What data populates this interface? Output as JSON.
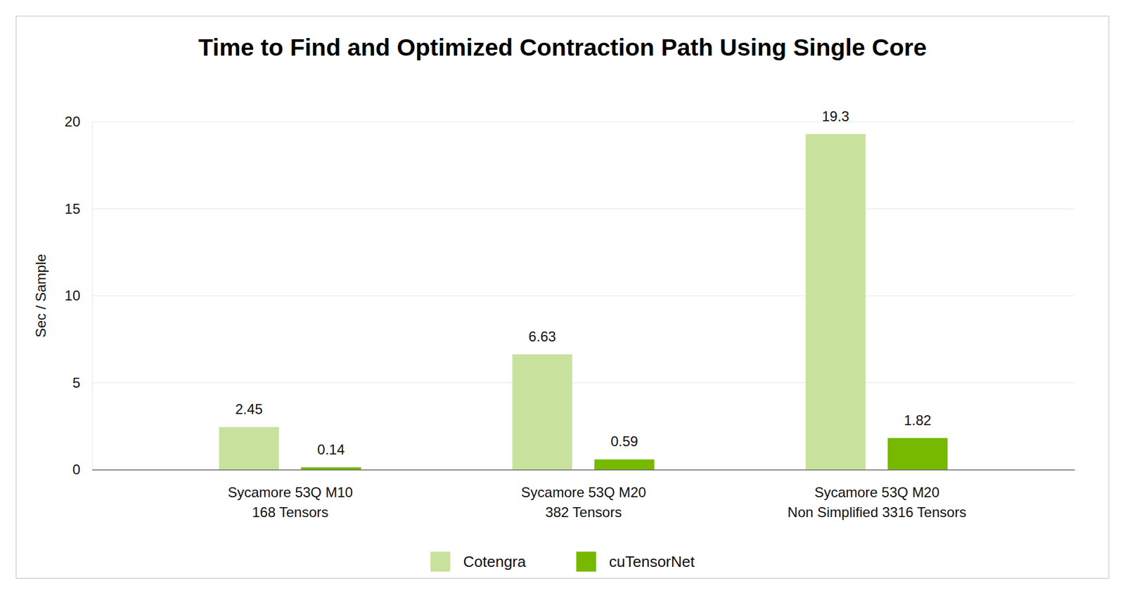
{
  "chart_data": {
    "type": "bar",
    "title": "Time to Find and Optimized Contraction Path Using Single Core",
    "y_label": "Sec / Sample",
    "categories": [
      "Sycamore 53Q M10\n168 Tensors",
      "Sycamore 53Q M20\n382 Tensors",
      "Sycamore 53Q M20\nNon Simplified 3316 Tensors"
    ],
    "series": [
      {
        "name": "Cotengra",
        "color": "#c8e29d",
        "values": [
          2.45,
          6.63,
          19.3
        ]
      },
      {
        "name": "cuTensorNet",
        "color": "#76b900",
        "values": [
          0.14,
          0.59,
          1.82
        ]
      }
    ],
    "ylim": [
      0,
      20
    ],
    "yticks": [
      0,
      5,
      10,
      15,
      20
    ],
    "grid": true,
    "data_labels": true,
    "legend": "bottom"
  }
}
